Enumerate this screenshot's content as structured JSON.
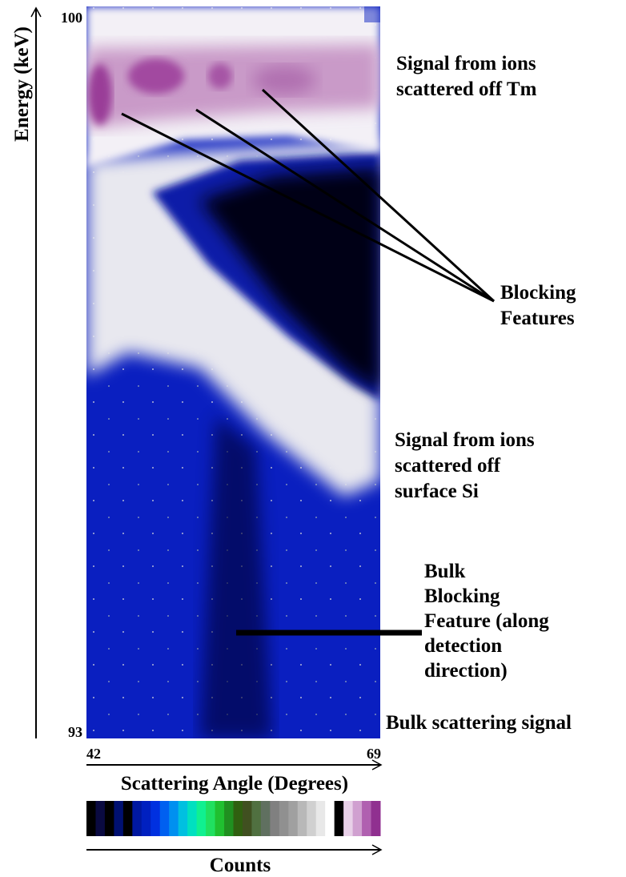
{
  "y_axis": {
    "label": "Energy (keV)",
    "top": "100",
    "bottom": "93"
  },
  "x_axis": {
    "label": "Scattering Angle (Degrees)",
    "left": "42",
    "right": "69"
  },
  "colorbar": {
    "label": "Counts"
  },
  "annotations": {
    "tm_signal": [
      "Signal from ions",
      "scattered off Tm"
    ],
    "blocking": [
      "Blocking",
      "Features"
    ],
    "si_signal": [
      "Signal from ions",
      "scattered off",
      "surface Si"
    ],
    "bulk_blocking": [
      "Bulk",
      "Blocking",
      "Feature (along",
      "detection",
      "direction)"
    ],
    "bulk_signal": [
      "Bulk scattering signal"
    ]
  }
}
